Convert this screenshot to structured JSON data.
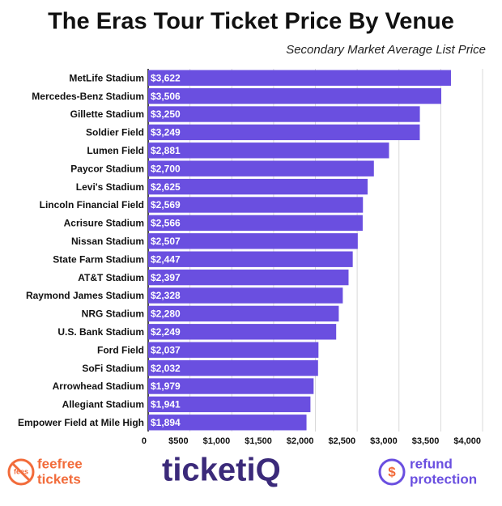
{
  "chart_data": {
    "type": "bar",
    "orientation": "horizontal",
    "title": "The Eras Tour Ticket Price By Venue",
    "subtitle": "Secondary Market Average List Price",
    "categories": [
      "MetLife Stadium",
      "Mercedes-Benz Stadium",
      "Gillette Stadium",
      "Soldier Field",
      "Lumen Field",
      "Paycor Stadium",
      "Levi's Stadium",
      "Lincoln Financial Field",
      "Acrisure Stadium",
      "Nissan Stadium",
      "State Farm Stadium",
      "AT&T Stadium",
      "Raymond James Stadium",
      "NRG Stadium",
      "U.S. Bank Stadium",
      "Ford Field",
      "SoFi Stadium",
      "Arrowhead Stadium",
      "Allegiant Stadium",
      "Empower Field at Mile High"
    ],
    "values": [
      3622,
      3506,
      3250,
      3249,
      2881,
      2700,
      2625,
      2569,
      2566,
      2507,
      2447,
      2397,
      2328,
      2280,
      2249,
      2037,
      2032,
      1979,
      1941,
      1894
    ],
    "value_labels": [
      "$3,622",
      "$3,506",
      "$3,250",
      "$3,249",
      "$2,881",
      "$2,700",
      "$2,625",
      "$2,569",
      "$2,566",
      "$2,507",
      "$2,447",
      "$2,397",
      "$2,328",
      "$2,280",
      "$2,249",
      "$2,037",
      "$2,032",
      "$1,979",
      "$1,941",
      "$1,894"
    ],
    "color": "#6a4fe0",
    "xlim": [
      0,
      4000
    ],
    "xticks": [
      0,
      {
        "value": 500,
        "label": "$500"
      },
      {
        "value": 1000,
        "label": "$1,000"
      },
      {
        "value": 1500,
        "label": "$1,500"
      },
      {
        "value": 2000,
        "label": "$2,000"
      },
      {
        "value": 2500,
        "label": "$2,500"
      },
      {
        "value": 3000,
        "label": "$3,000"
      },
      {
        "value": 3500,
        "label": "$3,500"
      },
      {
        "value": 4000,
        "label": "$4,000"
      }
    ],
    "grid": true
  },
  "footer": {
    "left": [
      "feefree",
      "tickets"
    ],
    "left_badge": "fees",
    "center": "ticketiQ",
    "right": [
      "refund",
      "protection"
    ]
  }
}
